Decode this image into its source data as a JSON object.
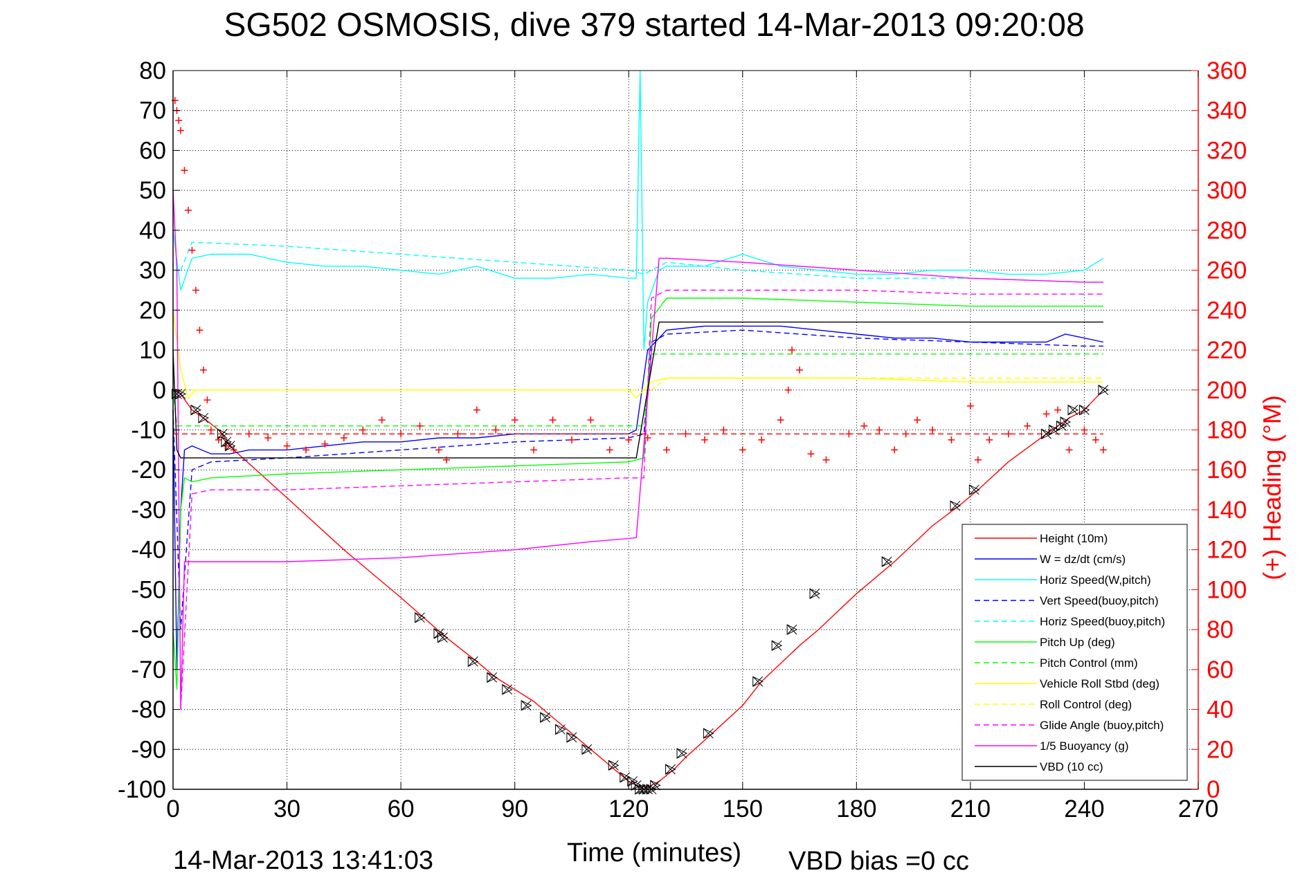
{
  "chart_data": {
    "type": "line",
    "title": "SG502 OSMOSIS, dive 379 started 14-Mar-2013 09:20:08",
    "xlabel": "Time (minutes)",
    "ylabel": "",
    "y2label": "(+) Heading (°M)",
    "xlim": [
      0,
      270
    ],
    "ylim": [
      -100,
      80
    ],
    "y2lim": [
      0,
      360
    ],
    "xticks": [
      0,
      30,
      60,
      90,
      120,
      150,
      180,
      210,
      240,
      270
    ],
    "yticks": [
      -100,
      -90,
      -80,
      -70,
      -60,
      -50,
      -40,
      -30,
      -20,
      -10,
      0,
      10,
      20,
      30,
      40,
      50,
      60,
      70,
      80
    ],
    "y2ticks": [
      0,
      20,
      40,
      60,
      80,
      100,
      120,
      140,
      160,
      180,
      200,
      220,
      240,
      260,
      280,
      300,
      320,
      340,
      360
    ],
    "grid": true,
    "legend_position": "bottom-right",
    "footer_left": "14-Mar-2013 13:41:03",
    "footer_right": "VBD bias =0 cc",
    "series": [
      {
        "name": "Height (10m)",
        "color": "#ff0000",
        "dash": "solid",
        "axis": "left",
        "x": [
          0,
          2,
          5,
          8,
          12,
          16,
          30,
          45,
          60,
          66,
          72,
          80,
          85,
          90,
          95,
          100,
          105,
          110,
          115,
          120,
          122,
          124,
          126,
          128,
          132,
          135,
          142,
          150,
          155,
          165,
          170,
          180,
          190,
          200,
          207,
          212,
          220,
          230,
          236,
          240,
          245
        ],
        "y": [
          0,
          -1,
          -5,
          -7,
          -10,
          -15,
          -27,
          -40,
          -52,
          -57,
          -62,
          -68,
          -72,
          -75,
          -78,
          -82,
          -86,
          -90,
          -94,
          -98,
          -99,
          -100,
          -99,
          -98,
          -95,
          -92,
          -86,
          -79,
          -73,
          -64,
          -60,
          -51,
          -43,
          -34,
          -29,
          -25,
          -18,
          -11,
          -7,
          -5,
          0
        ]
      },
      {
        "name": "W = dz/dt (cm/s)",
        "color": "#0000ff",
        "dash": "solid",
        "axis": "left",
        "x": [
          0,
          1,
          2,
          3,
          5,
          10,
          15,
          20,
          30,
          40,
          50,
          60,
          70,
          80,
          90,
          100,
          110,
          120,
          122,
          125,
          130,
          140,
          150,
          160,
          170,
          180,
          190,
          200,
          210,
          220,
          230,
          235,
          240,
          245
        ],
        "y": [
          -5,
          -70,
          -30,
          -15,
          -14,
          -16,
          -16,
          -15,
          -15,
          -14,
          -13,
          -13,
          -12,
          -12,
          -11,
          -11,
          -11,
          -11,
          -10,
          10,
          15,
          16,
          16,
          16,
          15,
          14,
          13,
          13,
          12,
          12,
          12,
          14,
          13,
          12
        ]
      },
      {
        "name": "Horiz Speed(W,pitch)",
        "color": "#00ffff",
        "dash": "solid",
        "axis": "left",
        "x": [
          0,
          2,
          5,
          10,
          20,
          30,
          40,
          50,
          60,
          70,
          80,
          90,
          100,
          110,
          120,
          122,
          123,
          124,
          125,
          128,
          130,
          140,
          150,
          160,
          170,
          180,
          190,
          200,
          210,
          220,
          230,
          240,
          245
        ],
        "y": [
          40,
          25,
          33,
          34,
          34,
          32,
          31,
          31,
          30,
          29,
          31,
          28,
          28,
          29,
          28,
          28,
          80,
          10,
          22,
          30,
          31,
          31,
          34,
          31,
          30,
          29,
          29,
          30,
          30,
          29,
          29,
          30,
          33
        ]
      },
      {
        "name": "Vert Speed(buoy,pitch)",
        "color": "#0000ff",
        "dash": "dashed",
        "axis": "left",
        "x": [
          0,
          2,
          5,
          10,
          30,
          60,
          90,
          120,
          124,
          126,
          130,
          150,
          180,
          210,
          240,
          245
        ],
        "y": [
          -5,
          -60,
          -20,
          -18,
          -17,
          -15,
          -13,
          -12,
          -11,
          12,
          14,
          15,
          13,
          12,
          11,
          11
        ]
      },
      {
        "name": "Horiz Speed(buoy,pitch)",
        "color": "#00ffff",
        "dash": "dashed",
        "axis": "left",
        "x": [
          2,
          5,
          30,
          60,
          90,
          120,
          124,
          126,
          130,
          150,
          180,
          210,
          240,
          245
        ],
        "y": [
          30,
          37,
          36,
          34,
          32,
          30,
          29,
          30,
          32,
          30,
          28,
          28,
          27,
          27
        ]
      },
      {
        "name": "Pitch Up (deg)",
        "color": "#00ff00",
        "dash": "solid",
        "axis": "left",
        "x": [
          0,
          1,
          2,
          3,
          5,
          10,
          30,
          60,
          90,
          120,
          124,
          126,
          130,
          150,
          180,
          210,
          240,
          245
        ],
        "y": [
          -60,
          -75,
          -30,
          -22,
          -23,
          -22,
          -21,
          -20,
          -19,
          -18,
          -17,
          18,
          23,
          23,
          22,
          21,
          21,
          21
        ]
      },
      {
        "name": "Pitch Control (mm)",
        "color": "#00ff00",
        "dash": "dashed",
        "axis": "left",
        "x": [
          0,
          1,
          2,
          3,
          124,
          126,
          130,
          245
        ],
        "y": [
          0,
          -9,
          -9,
          -9,
          -9,
          9,
          9,
          9
        ]
      },
      {
        "name": "Vehicle Roll Stbd (deg)",
        "color": "#ffff00",
        "dash": "solid",
        "axis": "left",
        "x": [
          0,
          2,
          4,
          6,
          8,
          10,
          20,
          30,
          60,
          80,
          90,
          100,
          120,
          122,
          124,
          126,
          130,
          150,
          180,
          210,
          240,
          245
        ],
        "y": [
          20,
          5,
          -2,
          0,
          0,
          0,
          0,
          0,
          0,
          0,
          0,
          0,
          0,
          -2,
          0,
          2,
          3,
          3,
          3,
          2,
          2,
          2
        ]
      },
      {
        "name": "Roll Control (deg)",
        "color": "#ffff00",
        "dash": "dashed",
        "axis": "left",
        "x": [
          0,
          2,
          4,
          120,
          124,
          126,
          130,
          245
        ],
        "y": [
          0,
          0,
          0,
          0,
          0,
          0,
          3,
          3
        ]
      },
      {
        "name": "Glide Angle (buoy,pitch)",
        "color": "#ff00ff",
        "dash": "dashed",
        "axis": "left",
        "x": [
          2,
          5,
          10,
          30,
          60,
          90,
          120,
          124,
          126,
          130,
          150,
          180,
          210,
          240,
          245
        ],
        "y": [
          -80,
          -26,
          -25,
          -25,
          -24,
          -23,
          -22,
          -22,
          23,
          25,
          25,
          25,
          24,
          24,
          24
        ]
      },
      {
        "name": "1/5 Buoyancy (g)",
        "color": "#ff00ff",
        "dash": "solid",
        "axis": "left",
        "x": [
          0,
          1,
          2,
          3,
          5,
          15,
          30,
          60,
          90,
          110,
          122,
          128,
          130,
          150,
          180,
          210,
          240,
          245
        ],
        "y": [
          50,
          30,
          -80,
          -43,
          -43,
          -43,
          -43,
          -42,
          -40,
          -38,
          -37,
          33,
          33,
          32,
          30,
          28,
          27,
          27
        ]
      },
      {
        "name": "VBD (10 cc)",
        "color": "#000000",
        "dash": "solid",
        "axis": "left",
        "x": [
          0,
          1,
          2,
          4,
          122,
          128,
          130,
          245
        ],
        "y": [
          10,
          -15,
          -17,
          -17,
          -17,
          17,
          17,
          17
        ]
      },
      {
        "name": "Heading",
        "color": "#ff0000",
        "dash": "none",
        "marker": "+",
        "axis": "right",
        "x": [
          0.5,
          1,
          1.5,
          2,
          3,
          4,
          5,
          6,
          7,
          8,
          9,
          10,
          12,
          14,
          16,
          20,
          25,
          30,
          35,
          40,
          45,
          50,
          55,
          60,
          65,
          70,
          72,
          75,
          80,
          85,
          90,
          95,
          100,
          105,
          110,
          115,
          120,
          125,
          130,
          135,
          140,
          145,
          150,
          155,
          160,
          162,
          163,
          165,
          168,
          172,
          178,
          182,
          186,
          190,
          193,
          196,
          200,
          205,
          210,
          212,
          215,
          220,
          225,
          230,
          233,
          236,
          240,
          243,
          245
        ],
        "y": [
          345,
          340,
          335,
          330,
          310,
          290,
          270,
          250,
          230,
          210,
          195,
          180,
          175,
          172,
          170,
          178,
          176,
          172,
          170,
          173,
          176,
          180,
          185,
          178,
          182,
          170,
          165,
          178,
          190,
          180,
          185,
          170,
          185,
          175,
          185,
          170,
          175,
          176,
          170,
          178,
          175,
          180,
          170,
          175,
          185,
          200,
          220,
          210,
          168,
          165,
          178,
          182,
          180,
          170,
          178,
          185,
          180,
          175,
          192,
          165,
          175,
          178,
          182,
          188,
          190,
          170,
          180,
          175,
          170
        ]
      },
      {
        "name": "Target Heading",
        "color": "#ff0000",
        "dash": "dashed",
        "axis": "right",
        "x": [
          0,
          245
        ],
        "y": [
          178,
          178
        ]
      }
    ],
    "markers": {
      "name": "Sample points",
      "color": "#000000",
      "x": [
        1,
        2,
        6,
        8,
        13,
        14,
        15,
        65,
        70,
        71,
        79,
        84,
        88,
        93,
        98,
        102,
        105,
        109,
        116,
        119,
        121,
        122,
        123,
        124,
        125,
        126,
        127,
        131,
        134,
        141,
        154,
        159,
        163,
        169,
        188,
        206,
        211,
        230,
        232,
        234,
        235,
        237,
        240,
        245
      ],
      "y": [
        -1,
        -1,
        -5,
        -7,
        -11,
        -13,
        -14,
        -57,
        -61,
        -62,
        -68,
        -72,
        -75,
        -79,
        -82,
        -85,
        -87,
        -90,
        -94,
        -97,
        -98,
        -99,
        -100,
        -100,
        -100,
        -100,
        -99,
        -95,
        -91,
        -86,
        -73,
        -64,
        -60,
        -51,
        -43,
        -29,
        -25,
        -11,
        -10,
        -9,
        -8,
        -5,
        -5,
        0
      ]
    }
  }
}
